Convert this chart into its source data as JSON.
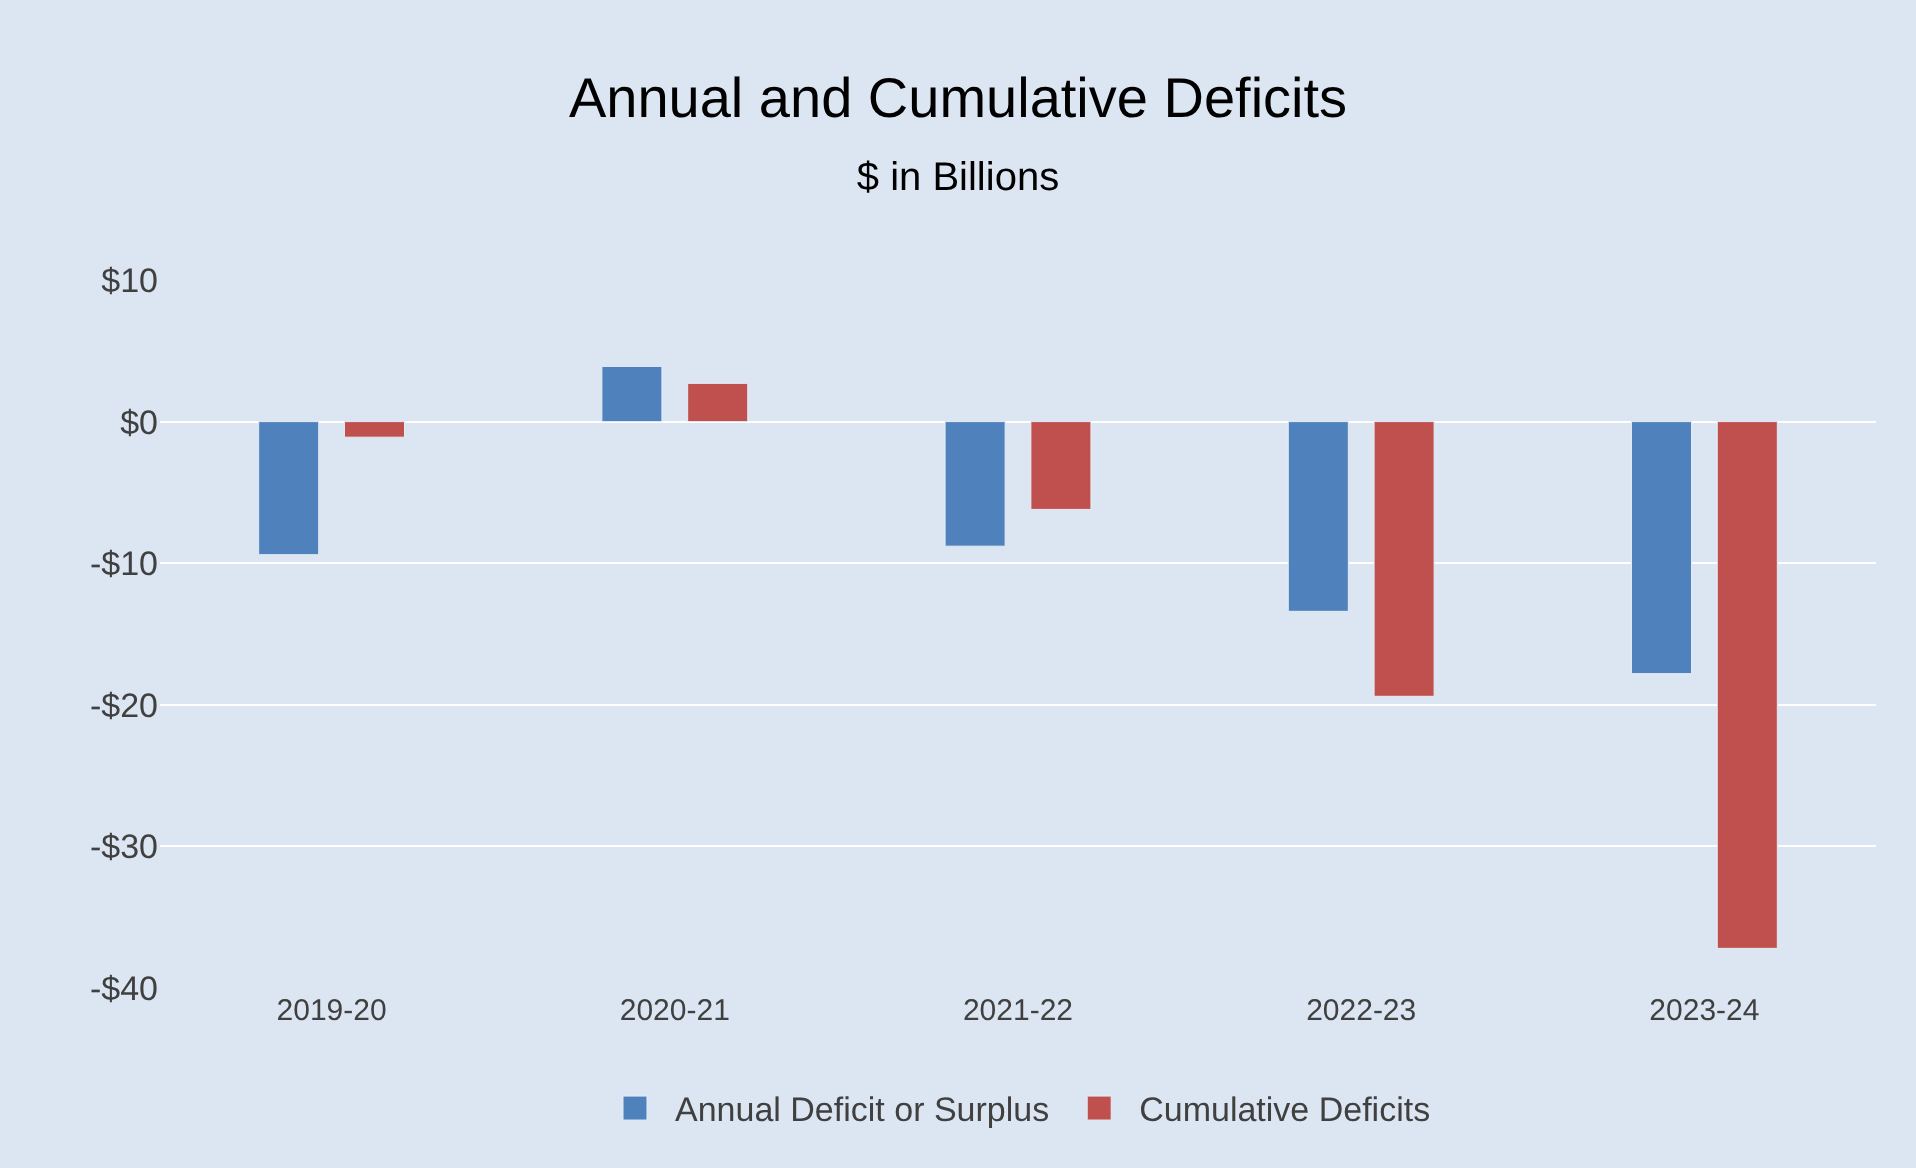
{
  "chart_data": {
    "type": "bar",
    "title": "Annual and Cumulative Deficits",
    "subtitle": "$ in Billions",
    "categories": [
      "2019-20",
      "2020-21",
      "2021-22",
      "2022-23",
      "2023-24"
    ],
    "series": [
      {
        "name": "Annual Deficit or Surplus",
        "color": "#4f81bd",
        "values": [
          -9.4,
          3.9,
          -8.8,
          -13.4,
          -17.8
        ]
      },
      {
        "name": "Cumulative Deficits",
        "color": "#c0504d",
        "values": [
          -1.1,
          2.7,
          -6.2,
          -19.4,
          -37.2
        ]
      }
    ],
    "ylim": [
      -40,
      10
    ],
    "yticks": [
      {
        "value": 10,
        "label": "$10"
      },
      {
        "value": 0,
        "label": "$0"
      },
      {
        "value": -10,
        "label": "-$10"
      },
      {
        "value": -20,
        "label": "-$20"
      },
      {
        "value": -30,
        "label": "-$30"
      },
      {
        "value": -40,
        "label": "-$40"
      }
    ],
    "grid": "y",
    "legend": "bottom"
  }
}
